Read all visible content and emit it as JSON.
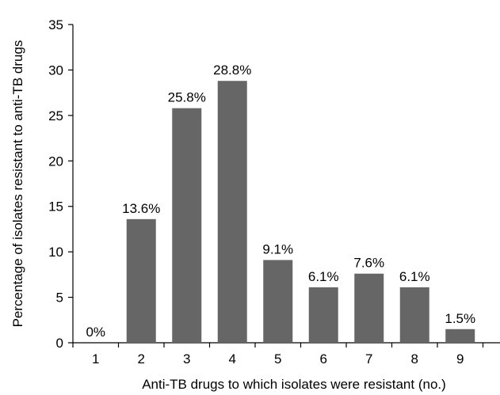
{
  "chart_data": {
    "type": "bar",
    "xlabel": "Anti-TB drugs to which isolates were resistant (no.)",
    "ylabel": "Percentage of isolates resistant to anti-TB drugs",
    "categories": [
      "1",
      "2",
      "3",
      "4",
      "5",
      "6",
      "7",
      "8",
      "9"
    ],
    "values": [
      0,
      13.6,
      25.8,
      28.8,
      9.1,
      6.1,
      7.6,
      6.1,
      1.5
    ],
    "data_labels": [
      "0%",
      "13.6%",
      "25.8%",
      "28.8%",
      "9.1%",
      "6.1%",
      "7.6%",
      "6.1%",
      "1.5%"
    ],
    "ylim": [
      0,
      35
    ],
    "yticks": [
      "0",
      "5",
      "10",
      "15",
      "20",
      "25",
      "30",
      "35"
    ],
    "grid": false,
    "bar_color": "#666666"
  }
}
